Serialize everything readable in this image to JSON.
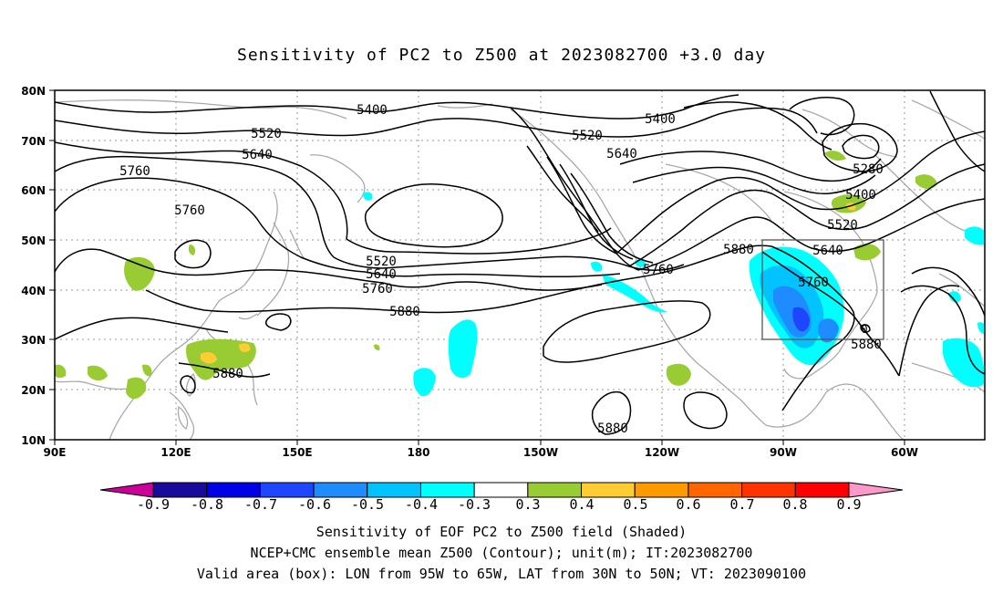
{
  "title": "Sensitivity of PC2 to Z500 at 2023082700 +3.0 day",
  "axes": {
    "lon_ticks": [
      "90E",
      "120E",
      "150E",
      "180",
      "150W",
      "120W",
      "90W",
      "60W"
    ],
    "lat_ticks": [
      "80N",
      "70N",
      "60N",
      "50N",
      "40N",
      "30N",
      "20N",
      "10N"
    ]
  },
  "contour_labels": [
    "5400",
    "5400",
    "5520",
    "5520",
    "5640",
    "5640",
    "5760",
    "5760",
    "5880",
    "5520",
    "5640",
    "5760",
    "5880",
    "5880",
    "5760",
    "5880",
    "5640",
    "5760",
    "5520",
    "5400",
    "5280",
    "5880",
    "0"
  ],
  "colorbar": {
    "labels": [
      "-0.9",
      "-0.8",
      "-0.7",
      "-0.6",
      "-0.5",
      "-0.4",
      "-0.3",
      "0.3",
      "0.4",
      "0.5",
      "0.6",
      "0.7",
      "0.8",
      "0.9"
    ],
    "colors": [
      "#1a0a9c",
      "#0000e6",
      "#1e46ff",
      "#1e8cff",
      "#00c3ff",
      "#00ffff",
      "#ffffff",
      "#99cc33",
      "#ffcc33",
      "#ff9900",
      "#ff6600",
      "#ff3300",
      "#ff0000"
    ],
    "low_end_color": "#cc0099",
    "high_end_color": "#ff99cc"
  },
  "footer": {
    "line1": "Sensitivity of EOF PC2 to Z500 field (Shaded)",
    "line2": "NCEP+CMC ensemble mean Z500 (Contour); unit(m); IT:2023082700",
    "line3": "Valid area (box): LON from 95W to 65W, LAT from 30N to 50N; VT: 2023090100"
  },
  "valid_box": {
    "lon_from": "95W",
    "lon_to": "65W",
    "lat_from": "30N",
    "lat_to": "50N"
  }
}
